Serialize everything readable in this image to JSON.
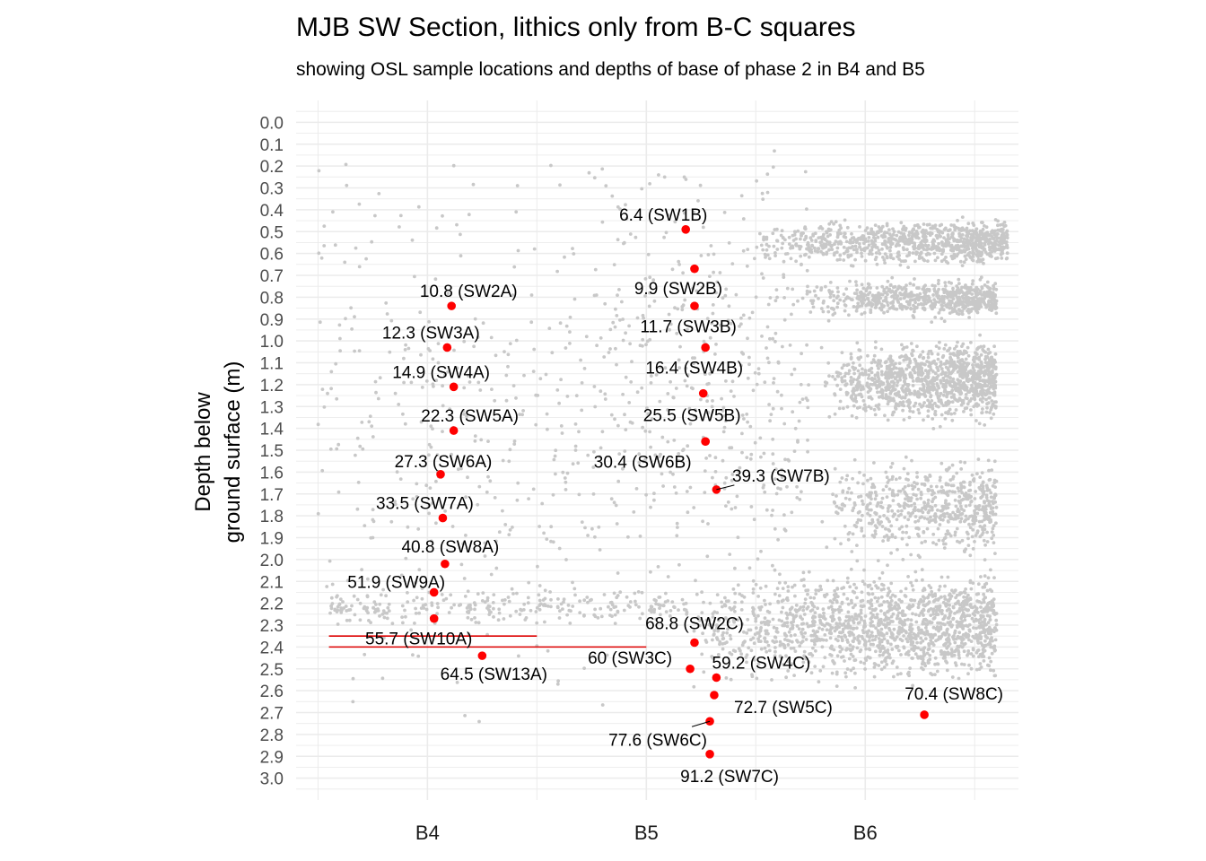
{
  "chart_data": {
    "type": "scatter",
    "title": "MJB SW Section, lithics only from B-C squares",
    "subtitle": "showing OSL sample locations and depths of base of phase 2 in B4 and B5",
    "ylabel_lines": [
      "Depth below",
      "ground surface (m)"
    ],
    "xlabel": "",
    "x_categories": [
      "B4",
      "B5",
      "B6"
    ],
    "x_range": [
      3.4,
      6.7
    ],
    "y_range": [
      3.1,
      -0.1
    ],
    "y_reversed": true,
    "y_ticks": [
      "0.0",
      "0.1",
      "0.2",
      "0.3",
      "0.4",
      "0.5",
      "0.6",
      "0.7",
      "0.8",
      "0.9",
      "1.0",
      "1.1",
      "1.2",
      "1.3",
      "1.4",
      "1.5",
      "1.6",
      "1.7",
      "1.8",
      "1.9",
      "2.0",
      "2.1",
      "2.2",
      "2.3",
      "2.4",
      "2.5",
      "2.6",
      "2.7",
      "2.8",
      "2.9",
      "3.0"
    ],
    "grid": true,
    "colors": {
      "lithics": "#c8c8c8",
      "samples": "#ff0000",
      "phase_line": "#dd0000",
      "grid": "#ebebeb"
    },
    "phase2_base_lines": [
      {
        "square": "B4",
        "x": [
          3.55,
          4.5
        ],
        "depth": 2.35
      },
      {
        "square": "B4-B5",
        "x": [
          3.55,
          5.0
        ],
        "depth": 2.4
      }
    ],
    "osl_samples": [
      {
        "label": "6.4 (SW1B)",
        "x": 5.18,
        "depth": 0.49
      },
      {
        "label": "",
        "x": 5.22,
        "depth": 0.67
      },
      {
        "label": "9.9 (SW2B)",
        "x": 5.22,
        "depth": 0.84
      },
      {
        "label": "11.7 (SW3B)",
        "x": 5.27,
        "depth": 1.03
      },
      {
        "label": "16.4 (SW4B)",
        "x": 5.26,
        "depth": 1.24
      },
      {
        "label": "25.5 (SW5B)",
        "x": 5.27,
        "depth": 1.46
      },
      {
        "label": "30.4 (SW6B)",
        "x": 5.27,
        "depth": 1.46
      },
      {
        "label": "39.3 (SW7B)",
        "x": 5.32,
        "depth": 1.68
      },
      {
        "label": "10.8 (SW2A)",
        "x": 4.11,
        "depth": 0.84
      },
      {
        "label": "12.3 (SW3A)",
        "x": 4.09,
        "depth": 1.03
      },
      {
        "label": "14.9 (SW4A)",
        "x": 4.12,
        "depth": 1.21
      },
      {
        "label": "22.3 (SW5A)",
        "x": 4.12,
        "depth": 1.41
      },
      {
        "label": "27.3 (SW6A)",
        "x": 4.06,
        "depth": 1.61
      },
      {
        "label": "33.5 (SW7A)",
        "x": 4.07,
        "depth": 1.81
      },
      {
        "label": "40.8 (SW8A)",
        "x": 4.08,
        "depth": 2.02
      },
      {
        "label": "51.9 (SW9A)",
        "x": 4.03,
        "depth": 2.15
      },
      {
        "label": "55.7 (SW10A)",
        "x": 4.03,
        "depth": 2.27
      },
      {
        "label": "64.5 (SW13A)",
        "x": 4.25,
        "depth": 2.44
      },
      {
        "label": "68.8 (SW2C)",
        "x": 5.22,
        "depth": 2.38
      },
      {
        "label": "60 (SW3C)",
        "x": 5.2,
        "depth": 2.5
      },
      {
        "label": "59.2 (SW4C)",
        "x": 5.32,
        "depth": 2.54
      },
      {
        "label": "72.7 (SW5C)",
        "x": 5.31,
        "depth": 2.62
      },
      {
        "label": "77.6 (SW6C)",
        "x": 5.29,
        "depth": 2.74
      },
      {
        "label": "91.2 (SW7C)",
        "x": 5.29,
        "depth": 2.89
      },
      {
        "label": "70.4 (SW8C)",
        "x": 6.27,
        "depth": 2.71
      }
    ],
    "lithic_density_regions": [
      {
        "name": "B6 band 0.5-0.65",
        "x": [
          5.5,
          6.65
        ],
        "depth": [
          0.42,
          0.68
        ],
        "n": 900
      },
      {
        "name": "B6 band 0.7-0.9",
        "x": [
          5.7,
          6.6
        ],
        "depth": [
          0.7,
          0.92
        ],
        "n": 650
      },
      {
        "name": "B6 band 0.95-1.4",
        "x": [
          5.8,
          6.6
        ],
        "depth": [
          0.95,
          1.42
        ],
        "n": 1100
      },
      {
        "name": "B6 band 1.5-2.0",
        "x": [
          5.8,
          6.6
        ],
        "depth": [
          1.48,
          2.05
        ],
        "n": 600
      },
      {
        "name": "B6 band 2.0-2.6",
        "x": [
          5.2,
          6.6
        ],
        "depth": [
          2.0,
          2.62
        ],
        "n": 1500
      },
      {
        "name": "B5 scatter",
        "x": [
          4.85,
          5.75
        ],
        "depth": [
          0.1,
          2.3
        ],
        "n": 420
      },
      {
        "name": "B4 scatter",
        "x": [
          3.5,
          4.85
        ],
        "depth": [
          0.1,
          2.85
        ],
        "n": 380
      },
      {
        "name": "B4-B5 band 2.2",
        "x": [
          3.55,
          5.2
        ],
        "depth": [
          2.13,
          2.3
        ],
        "n": 260
      }
    ]
  }
}
